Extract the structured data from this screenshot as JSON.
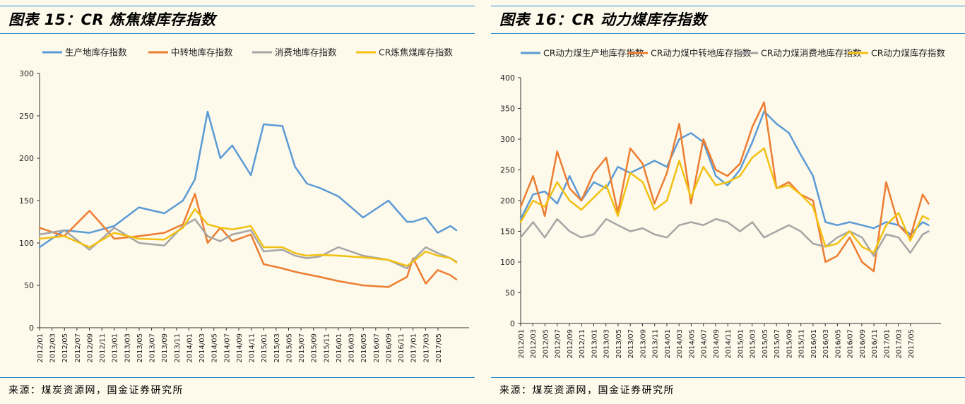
{
  "panels": [
    {
      "title": "图表 15：CR 炼焦煤库存指数",
      "source": "来源：煤炭资源网，国金证券研究所"
    },
    {
      "title": "图表 16：CR 动力煤库存指数",
      "source": "来源：煤炭资源网，国金证券研究所"
    }
  ],
  "colors": {
    "rule": "#2b8ccf",
    "background": "#fdf9eb"
  },
  "chart_data": [
    {
      "type": "line",
      "title": "",
      "xlabel": "",
      "ylabel": "",
      "ylim": [
        0,
        300
      ],
      "yticks": [
        0,
        50,
        100,
        150,
        200,
        250,
        300
      ],
      "legend_position": "top",
      "grid": false,
      "xticks": [
        "2012/01",
        "2012/03",
        "2012/05",
        "2012/07",
        "2012/09",
        "2012/11",
        "2013/01",
        "2013/03",
        "2013/05",
        "2013/07",
        "2013/09",
        "2013/11",
        "2014/01",
        "2014/03",
        "2014/05",
        "2014/07",
        "2014/09",
        "2014/11",
        "2015/01",
        "2015/03",
        "2015/05",
        "2015/07",
        "2015/09",
        "2015/11",
        "2016/01",
        "2016/03",
        "2016/05",
        "2016/07",
        "2016/09",
        "2016/11",
        "2017/01",
        "2017/03",
        "2017/05"
      ],
      "x": [
        2012.0,
        2012.33,
        2012.67,
        2013.0,
        2013.33,
        2013.67,
        2013.92,
        2014.08,
        2014.25,
        2014.42,
        2014.58,
        2014.83,
        2015.0,
        2015.25,
        2015.42,
        2015.58,
        2015.75,
        2016.0,
        2016.33,
        2016.67,
        2016.92,
        2017.0,
        2017.17,
        2017.33,
        2017.5,
        2017.58
      ],
      "series": [
        {
          "name": "生产地库存指数",
          "color": "#5b9bd5",
          "values": [
            95,
            115,
            112,
            120,
            142,
            135,
            150,
            175,
            255,
            200,
            215,
            180,
            240,
            238,
            190,
            170,
            165,
            155,
            130,
            150,
            125,
            125,
            130,
            112,
            120,
            115
          ]
        },
        {
          "name": "中转地库存指数",
          "color": "#ed7d31",
          "values": [
            118,
            108,
            138,
            105,
            108,
            112,
            122,
            158,
            100,
            118,
            102,
            110,
            75,
            70,
            66,
            63,
            60,
            55,
            50,
            48,
            60,
            82,
            52,
            68,
            62,
            57
          ]
        },
        {
          "name": "消费地库存指数",
          "color": "#a5a5a5",
          "values": [
            110,
            115,
            92,
            118,
            100,
            97,
            120,
            128,
            108,
            102,
            110,
            115,
            90,
            92,
            85,
            82,
            84,
            95,
            85,
            80,
            70,
            80,
            95,
            88,
            82,
            78
          ]
        },
        {
          "name": "CR炼焦煤库存指数",
          "color": "#f2c112",
          "values": [
            105,
            108,
            95,
            112,
            105,
            104,
            118,
            140,
            122,
            118,
            116,
            120,
            95,
            95,
            88,
            85,
            86,
            85,
            83,
            80,
            73,
            78,
            90,
            85,
            82,
            77
          ]
        }
      ]
    },
    {
      "type": "line",
      "title": "",
      "xlabel": "",
      "ylabel": "",
      "ylim": [
        0,
        400
      ],
      "yticks": [
        0,
        50,
        100,
        150,
        200,
        250,
        300,
        350,
        400
      ],
      "legend_position": "top",
      "grid": false,
      "xticks": [
        "2012/01",
        "2012/03",
        "2012/05",
        "2012/07",
        "2012/09",
        "2012/11",
        "2013/01",
        "2013/03",
        "2013/05",
        "2013/07",
        "2013/09",
        "2013/11",
        "2014/01",
        "2014/03",
        "2014/05",
        "2014/07",
        "2014/09",
        "2014/11",
        "2015/01",
        "2015/03",
        "2015/05",
        "2015/07",
        "2015/09",
        "2015/11",
        "2016/01",
        "2016/03",
        "2016/05",
        "2016/07",
        "2016/09",
        "2016/11",
        "2017/01",
        "2017/03",
        "2017/05"
      ],
      "x": [
        2012.0,
        2012.17,
        2012.33,
        2012.5,
        2012.67,
        2012.83,
        2013.0,
        2013.17,
        2013.33,
        2013.5,
        2013.67,
        2013.83,
        2014.0,
        2014.17,
        2014.33,
        2014.5,
        2014.67,
        2014.83,
        2015.0,
        2015.17,
        2015.33,
        2015.5,
        2015.67,
        2015.83,
        2016.0,
        2016.17,
        2016.33,
        2016.5,
        2016.67,
        2016.83,
        2017.0,
        2017.17,
        2017.33,
        2017.5,
        2017.58
      ],
      "series": [
        {
          "name": "CR动力煤生产地库存指数",
          "color": "#5b9bd5",
          "values": [
            170,
            210,
            215,
            195,
            240,
            200,
            230,
            220,
            255,
            245,
            255,
            265,
            255,
            300,
            310,
            295,
            240,
            225,
            250,
            295,
            345,
            325,
            310,
            275,
            240,
            165,
            160,
            165,
            160,
            155,
            165,
            160,
            145,
            165,
            160
          ]
        },
        {
          "name": "CR动力煤中转地库存指数",
          "color": "#ed7d31",
          "values": [
            190,
            240,
            175,
            280,
            220,
            200,
            245,
            270,
            180,
            285,
            260,
            195,
            245,
            325,
            195,
            300,
            250,
            240,
            260,
            320,
            360,
            220,
            230,
            210,
            200,
            100,
            110,
            140,
            100,
            85,
            230,
            160,
            140,
            210,
            195
          ]
        },
        {
          "name": "CR动力煤消费地库存指数",
          "color": "#a5a5a5",
          "values": [
            140,
            165,
            140,
            170,
            150,
            140,
            145,
            170,
            160,
            150,
            155,
            145,
            140,
            160,
            165,
            160,
            170,
            165,
            150,
            165,
            140,
            150,
            160,
            150,
            130,
            125,
            140,
            150,
            140,
            110,
            145,
            140,
            115,
            145,
            150
          ]
        },
        {
          "name": "CR动力煤库存指数",
          "color": "#f2c112",
          "values": [
            165,
            200,
            190,
            230,
            200,
            185,
            205,
            225,
            175,
            245,
            230,
            185,
            200,
            265,
            205,
            255,
            225,
            230,
            240,
            270,
            285,
            220,
            225,
            210,
            190,
            125,
            130,
            150,
            125,
            115,
            160,
            180,
            135,
            175,
            170
          ]
        }
      ]
    }
  ]
}
